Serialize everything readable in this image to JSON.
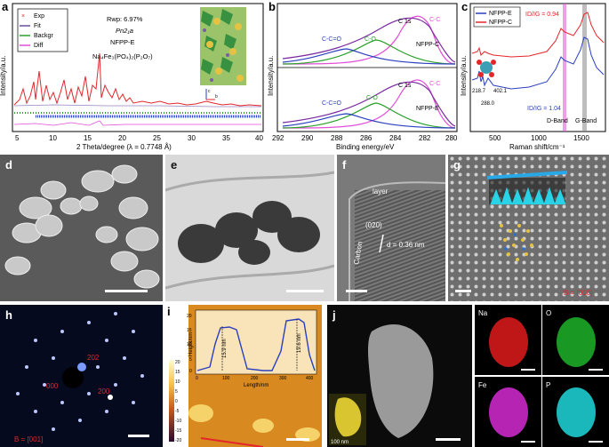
{
  "panels": {
    "a": {
      "letter": "a",
      "legend": [
        "Exp",
        "Fit",
        "Backgr",
        "Diff"
      ],
      "legend_colors": [
        "#e4262b",
        "#6a4fa3",
        "#2aa02a",
        "#e24ed8"
      ],
      "info": [
        "Rwp: 6.97%",
        "Pn2₁a",
        "NFPP-E",
        "Na₄Fe₃(PO₄)₂(P₂O₇)"
      ],
      "ylabel": "Intensity/a.u.",
      "xlabel": "2 Theta/degree (λ = 0.7748 Å)",
      "xticks": [
        "5",
        "10",
        "15",
        "20",
        "25",
        "30",
        "35",
        "40"
      ]
    },
    "b": {
      "letter": "b",
      "top_labels": [
        "C 1s",
        "C-C",
        "C-O",
        "C-C=O",
        "NFPP-C"
      ],
      "bottom_labels": [
        "C 1s",
        "C-C",
        "C-O",
        "C-C=O",
        "NFPP-E"
      ],
      "ylabel": "Intensity/a.u.",
      "xlabel": "Binding energy/eV",
      "xticks": [
        "292",
        "290",
        "288",
        "286",
        "284",
        "282",
        "280"
      ]
    },
    "c": {
      "letter": "c",
      "legend": [
        "NFPP-E",
        "NFPP-C"
      ],
      "legend_colors": [
        "#2a3fbf",
        "#e4262b"
      ],
      "ratio_c": "ID/IG = 0.94",
      "ratio_e": "ID/IG = 1.04",
      "peaks": [
        "218.7",
        "288.0",
        "402.1"
      ],
      "bands": [
        "D-Band",
        "G-Band"
      ],
      "ylabel": "Intensity/a.u.",
      "xlabel": "Raman shift/cm⁻¹",
      "xticks": [
        "500",
        "1000",
        "1500"
      ]
    },
    "d": {
      "letter": "d"
    },
    "e": {
      "letter": "e"
    },
    "f": {
      "letter": "f",
      "labels": [
        "layer",
        "Carbon",
        "(020)",
        "d = 0.36 nm"
      ]
    },
    "g": {
      "letter": "g",
      "zone": "B = [010]"
    },
    "h": {
      "letter": "h",
      "spots": [
        "202",
        "000",
        "200"
      ],
      "zone": "B = [001]"
    },
    "i": {
      "letter": "i",
      "ylabel": "Height/nm",
      "xlabel": "Length/nm",
      "xticks": [
        "0",
        "100",
        "200",
        "300",
        "400"
      ],
      "yticks": [
        "0",
        "5",
        "10",
        "15",
        "20"
      ],
      "heights": [
        "15.9 nm",
        "19.6 nm"
      ],
      "scale": [
        "20",
        "15",
        "10",
        "5",
        "0",
        "-5",
        "-10",
        "-15",
        "-20"
      ]
    },
    "j": {
      "letter": "j",
      "scale_text": "100 nm",
      "elements": [
        "Na",
        "O",
        "Fe",
        "P"
      ],
      "element_colors": [
        "#e11b1b",
        "#1eb32a",
        "#d62ad2",
        "#1fd7dc"
      ]
    }
  },
  "chart_data": [
    {
      "type": "line",
      "title": "",
      "xlabel": "2 Theta/degree (λ = 0.7748 Å)",
      "ylabel": "Intensity/a.u.",
      "xlim": [
        4,
        40
      ],
      "series": [
        {
          "name": "Exp",
          "x": [
            4.5,
            6,
            7,
            8,
            8.7,
            9.5,
            10.5,
            12,
            13.5,
            15,
            16,
            16.5,
            17.2,
            18,
            19,
            20,
            22,
            24,
            26,
            28,
            29.5,
            31,
            34,
            37,
            40
          ],
          "values": [
            0.28,
            0.32,
            0.38,
            0.55,
            0.42,
            0.6,
            0.4,
            0.48,
            0.55,
            0.6,
            0.9,
            0.75,
            0.58,
            0.5,
            0.43,
            0.4,
            0.35,
            0.33,
            0.3,
            0.3,
            0.34,
            0.29,
            0.27,
            0.26,
            0.25
          ]
        },
        {
          "name": "Diff",
          "x": [
            4.5,
            10,
            16,
            22,
            30,
            40
          ],
          "values": [
            -0.02,
            0.01,
            -0.03,
            0.01,
            0.0,
            0.0
          ]
        }
      ]
    },
    {
      "type": "line",
      "title": "",
      "xlabel": "Binding energy/eV",
      "ylabel": "Intensity/a.u.",
      "xlim": [
        292,
        280
      ],
      "series": [
        {
          "name": "NFPP-C",
          "x": [
            292,
            290,
            288,
            287,
            286,
            285,
            284.5,
            284,
            283,
            282,
            280
          ],
          "values": [
            0.05,
            0.12,
            0.3,
            0.45,
            0.62,
            0.82,
            0.9,
            0.82,
            0.4,
            0.1,
            0.02
          ]
        },
        {
          "name": "NFPP-E",
          "x": [
            292,
            290,
            288,
            287,
            286,
            285,
            284.5,
            284,
            283,
            282,
            280
          ],
          "values": [
            0.05,
            0.1,
            0.25,
            0.38,
            0.55,
            0.8,
            0.92,
            0.82,
            0.38,
            0.1,
            0.02
          ]
        }
      ]
    },
    {
      "type": "line",
      "title": "",
      "xlabel": "Raman shift/cm⁻¹",
      "ylabel": "Intensity/a.u.",
      "xlim": [
        100,
        1800
      ],
      "series": [
        {
          "name": "NFPP-E",
          "x": [
            100,
            218.7,
            288,
            402.1,
            600,
            900,
            1100,
            1250,
            1340,
            1450,
            1550,
            1600,
            1700,
            1800
          ],
          "values": [
            0.2,
            0.3,
            0.25,
            0.28,
            0.22,
            0.22,
            0.26,
            0.38,
            0.55,
            0.5,
            0.6,
            0.8,
            0.5,
            0.4
          ]
        },
        {
          "name": "NFPP-C",
          "x": [
            100,
            218.7,
            288,
            402.1,
            600,
            900,
            1100,
            1250,
            1340,
            1450,
            1550,
            1600,
            1700,
            1800
          ],
          "values": [
            0.4,
            0.42,
            0.4,
            0.41,
            0.4,
            0.4,
            0.45,
            0.6,
            0.72,
            0.7,
            0.82,
            0.98,
            0.8,
            0.6
          ]
        }
      ]
    },
    {
      "type": "line",
      "title": "",
      "xlabel": "Length/nm",
      "ylabel": "Height/nm",
      "xlim": [
        0,
        440
      ],
      "ylim": [
        0,
        20
      ],
      "series": [
        {
          "name": "",
          "x": [
            0,
            40,
            60,
            80,
            120,
            140,
            160,
            250,
            300,
            330,
            370,
            390,
            420,
            440
          ],
          "values": [
            0,
            2,
            10,
            15,
            15,
            8,
            1,
            0,
            8,
            19.5,
            19.5,
            12,
            2,
            0
          ]
        }
      ]
    }
  ]
}
